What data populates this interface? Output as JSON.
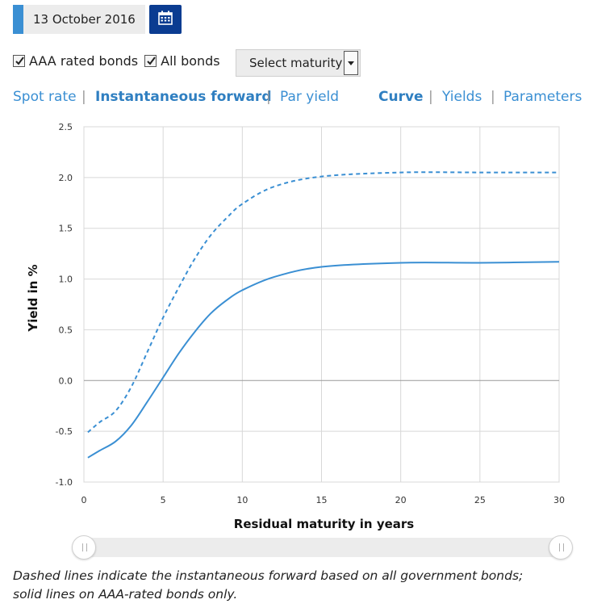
{
  "date": {
    "value": "13 October 2016",
    "calendar_icon": "calendar-icon"
  },
  "filters": {
    "aaa_label": "AAA rated bonds",
    "aaa_checked": true,
    "all_label": "All bonds",
    "all_checked": true,
    "maturity_select": "Select maturity"
  },
  "tabs_left": [
    {
      "label": "Spot rate",
      "active": false
    },
    {
      "label": "Instantaneous forward",
      "active": true
    },
    {
      "label": "Par yield",
      "active": false
    }
  ],
  "tabs_right": [
    {
      "label": "Curve",
      "active": true
    },
    {
      "label": "Yields",
      "active": false
    },
    {
      "label": "Parameters",
      "active": false
    }
  ],
  "colors": {
    "accent": "#3a8fd3",
    "dark_blue": "#0b3c91",
    "line": "#3a8fd3"
  },
  "chart_data": {
    "type": "line",
    "xlabel": "Residual maturity in years",
    "ylabel": "Yield in %",
    "xlim": [
      0,
      30
    ],
    "ylim": [
      -1.0,
      2.5
    ],
    "xticks": [
      0,
      5,
      10,
      15,
      20,
      25,
      30
    ],
    "yticks": [
      "-1.0",
      "-0.5",
      "0.0",
      "0.5",
      "1.0",
      "1.5",
      "2.0",
      "2.5"
    ],
    "grid": true,
    "series": [
      {
        "style": "dashed",
        "x": [
          0.25,
          1,
          2,
          3,
          4,
          5,
          6,
          7,
          8,
          9,
          10,
          12,
          15,
          20,
          25,
          30
        ],
        "y": [
          -0.51,
          -0.41,
          -0.3,
          -0.06,
          0.28,
          0.62,
          0.92,
          1.2,
          1.43,
          1.6,
          1.74,
          1.91,
          2.01,
          2.05,
          2.05,
          2.05
        ]
      },
      {
        "style": "solid",
        "x": [
          0.25,
          1,
          2,
          3,
          4,
          5,
          6,
          7,
          8,
          9,
          10,
          12,
          15,
          20,
          25,
          30
        ],
        "y": [
          -0.76,
          -0.69,
          -0.6,
          -0.44,
          -0.21,
          0.03,
          0.27,
          0.48,
          0.66,
          0.79,
          0.89,
          1.02,
          1.12,
          1.16,
          1.16,
          1.17
        ]
      }
    ]
  },
  "slider": {
    "min_handle_icon": "grip-icon",
    "max_handle_icon": "grip-icon"
  },
  "note": {
    "line1": "Dashed lines indicate the instantaneous forward based on all government bonds;",
    "line2": "solid lines on AAA-rated bonds only."
  }
}
